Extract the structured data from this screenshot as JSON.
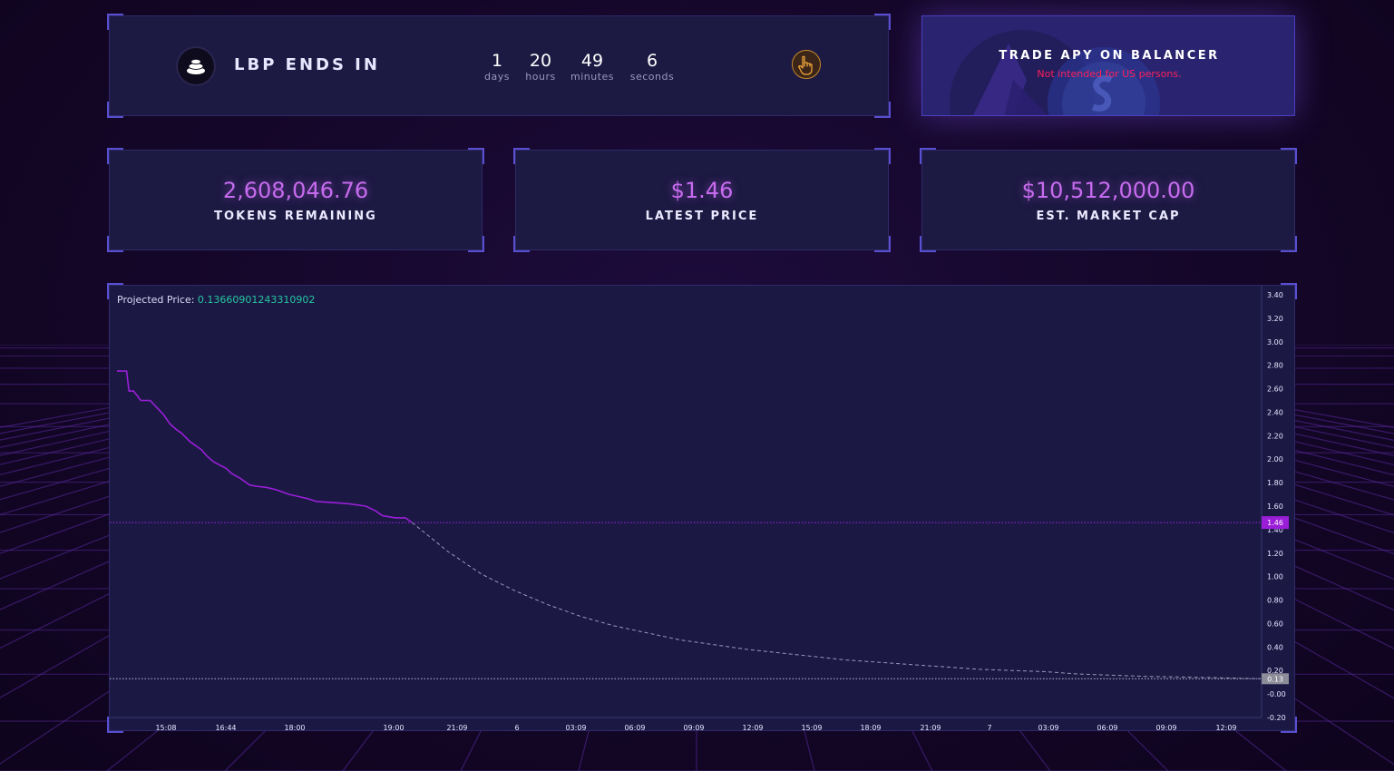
{
  "countdown": {
    "title": "LBP ENDS IN",
    "days": {
      "value": "1",
      "label": "days"
    },
    "hours": {
      "value": "20",
      "label": "hours"
    },
    "minutes": {
      "value": "49",
      "label": "minutes"
    },
    "seconds": {
      "value": "6",
      "label": "seconds"
    },
    "icons": {
      "logo": "stack-logo-icon",
      "action": "hand-pointer-icon"
    }
  },
  "trade": {
    "title": "TRADE APY ON BALANCER",
    "note": "Not intended for US persons."
  },
  "stats": {
    "tokens": {
      "value": "2,608,046.76",
      "label": "TOKENS REMAINING"
    },
    "price": {
      "value": "$1.46",
      "label": "LATEST PRICE"
    },
    "mcap": {
      "value": "$10,512,000.00",
      "label": "EST. MARKET CAP"
    }
  },
  "chart": {
    "projected_label": "Projected Price:",
    "projected_value": "0.13660901243310902"
  },
  "colors": {
    "accent": "#c76bef",
    "price_line": "#9a1ed8",
    "projected_text": "#26c6a0",
    "warning": "#ff1f5a"
  },
  "chart_data": {
    "type": "line",
    "ylim": [
      -0.2,
      3.4
    ],
    "y_ticks": [
      "3.40",
      "3.20",
      "3.00",
      "2.80",
      "2.60",
      "2.40",
      "2.20",
      "2.00",
      "1.80",
      "1.60",
      "1.40",
      "1.20",
      "1.00",
      "0.80",
      "0.60",
      "0.40",
      "0.20",
      "-0.00",
      "-0.20"
    ],
    "x_ticks": [
      "15:08",
      "16:44",
      "18:00",
      "19:00",
      "21:09",
      "6",
      "03:09",
      "06:09",
      "09:09",
      "12:09",
      "15:09",
      "18:09",
      "21:09",
      "7",
      "03:09",
      "06:09",
      "09:09",
      "12:09"
    ],
    "current_price_label": "1.46",
    "projected_end_label": "0.13",
    "series": [
      {
        "style": "solid",
        "x": [
          0,
          0.29,
          0.36,
          0.5,
          0.72,
          1.0,
          1.2,
          1.4,
          1.6,
          1.8,
          1.95,
          2.2,
          2.35,
          2.55,
          2.7,
          2.9,
          3.1,
          3.3,
          3.45,
          3.7,
          4.0,
          4.2,
          4.5,
          4.8,
          5.0,
          5.2,
          5.5,
          5.8,
          6.0,
          6.5,
          7.0,
          7.5,
          7.8,
          8.0,
          8.4,
          8.7,
          8.9
        ],
        "y": [
          2.75,
          2.75,
          2.58,
          2.58,
          2.5,
          2.5,
          2.44,
          2.38,
          2.3,
          2.25,
          2.22,
          2.15,
          2.12,
          2.08,
          2.03,
          1.98,
          1.95,
          1.92,
          1.88,
          1.84,
          1.78,
          1.77,
          1.76,
          1.74,
          1.72,
          1.7,
          1.68,
          1.66,
          1.64,
          1.63,
          1.62,
          1.6,
          1.56,
          1.52,
          1.5,
          1.5,
          1.46
        ]
      },
      {
        "style": "dashed",
        "x": [
          8.9,
          10,
          11,
          12,
          13,
          14,
          15,
          16,
          17,
          18,
          19,
          20,
          21,
          22,
          23,
          24,
          25,
          26,
          27,
          28,
          29,
          30,
          31,
          32,
          33,
          34.5
        ],
        "y": [
          1.46,
          1.21,
          1.02,
          0.88,
          0.76,
          0.66,
          0.58,
          0.52,
          0.46,
          0.42,
          0.38,
          0.35,
          0.32,
          0.29,
          0.27,
          0.25,
          0.23,
          0.21,
          0.2,
          0.19,
          0.17,
          0.16,
          0.15,
          0.145,
          0.14,
          0.13
        ]
      }
    ]
  }
}
